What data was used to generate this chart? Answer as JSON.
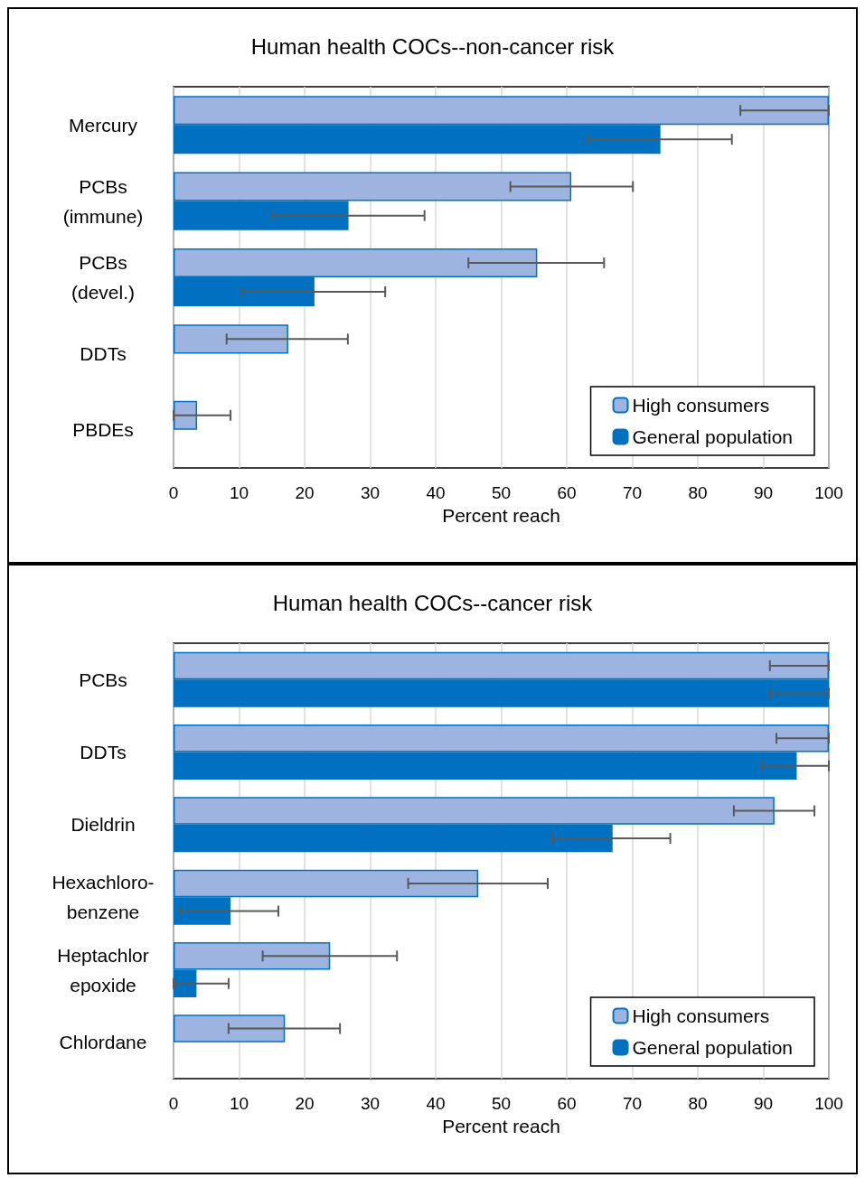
{
  "chart_data": [
    {
      "type": "bar",
      "title": "Human health COCs--non-cancer risk",
      "orientation": "horizontal",
      "xlabel": "Percent reach",
      "categories": [
        "Mercury",
        "PCBs\n(immune)",
        "PCBs\n(devel.)",
        "DDTs",
        "PBDEs"
      ],
      "series": [
        {
          "name": "High consumers",
          "color": "#9db3e0",
          "values": [
            100,
            60.7,
            55.5,
            17.5,
            3.6
          ],
          "errors": [
            [
              86.5,
              100
            ],
            [
              51.4,
              70.1
            ],
            [
              45,
              65.7
            ],
            [
              8.1,
              26.6
            ],
            [
              0,
              8.7
            ]
          ]
        },
        {
          "name": "General population",
          "color": "#0070c0",
          "values": [
            74.3,
            26.7,
            21.5,
            null,
            null
          ],
          "errors": [
            [
              63.3,
              85.2
            ],
            [
              15.1,
              38.3
            ],
            [
              10.4,
              32.3
            ],
            null,
            null
          ]
        }
      ],
      "xlim": [
        0,
        100
      ],
      "xticks": [
        0,
        10,
        20,
        30,
        40,
        50,
        60,
        70,
        80,
        90,
        100
      ],
      "grid": "x",
      "legend": "bottom right"
    },
    {
      "type": "bar",
      "title": "Human health COCs--cancer risk",
      "orientation": "horizontal",
      "xlabel": "Percent reach",
      "categories": [
        "PCBs",
        "DDTs",
        "Dieldrin",
        "Hexachloro-\nbenzene",
        "Heptachlor\nepoxide",
        "Chlordane"
      ],
      "series": [
        {
          "name": "High consumers",
          "color": "#9db3e0",
          "values": [
            100,
            100,
            91.7,
            46.5,
            23.9,
            17
          ],
          "errors": [
            [
              91,
              100
            ],
            [
              92,
              100
            ],
            [
              85.5,
              97.8
            ],
            [
              35.8,
              57.1
            ],
            [
              13.6,
              34.1
            ],
            [
              8.4,
              25.4
            ]
          ]
        },
        {
          "name": "General population",
          "color": "#0070c0",
          "values": [
            100,
            95.1,
            67,
            8.7,
            3.5,
            null
          ],
          "errors": [
            [
              91,
              100
            ],
            [
              89.7,
              100
            ],
            [
              57.8,
              75.8
            ],
            [
              1,
              16
            ],
            [
              0,
              8.4
            ],
            null
          ]
        }
      ],
      "xlim": [
        0,
        100
      ],
      "xticks": [
        0,
        10,
        20,
        30,
        40,
        50,
        60,
        70,
        80,
        90,
        100
      ],
      "grid": "x",
      "legend": "bottom right"
    }
  ]
}
